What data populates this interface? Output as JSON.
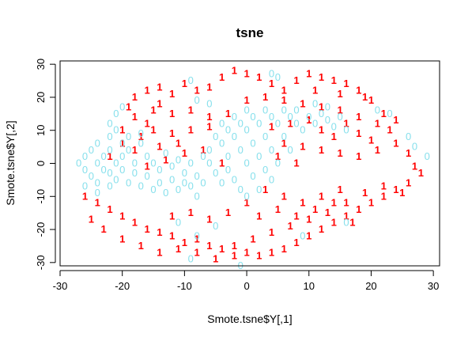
{
  "chart_data": {
    "type": "scatter",
    "title": "tsne",
    "xlabel": "Smote.tsne$Y[,1]",
    "ylabel": "Smote.tsne$Y[,2]",
    "xlim": [
      -30,
      31
    ],
    "ylim": [
      -31,
      31
    ],
    "x_ticks": [
      -30,
      -20,
      -10,
      0,
      10,
      20,
      30
    ],
    "y_ticks": [
      -30,
      -20,
      -10,
      0,
      10,
      20,
      30
    ],
    "x_tick_labels": [
      "-30",
      "-20",
      "-10",
      "0",
      "10",
      "20",
      "30"
    ],
    "y_tick_labels": [
      "-30",
      "-20",
      "-10",
      "0",
      "10",
      "20",
      "30"
    ],
    "grid": false,
    "legend": "none",
    "series": [
      {
        "glyph": "1",
        "color": "#ff0000",
        "points": [
          [
            -18,
            20
          ],
          [
            -16,
            22
          ],
          [
            -14,
            23
          ],
          [
            -12,
            21
          ],
          [
            -10,
            24
          ],
          [
            -8,
            22
          ],
          [
            -6,
            23
          ],
          [
            -4,
            26
          ],
          [
            -2,
            28
          ],
          [
            0,
            27
          ],
          [
            2,
            26
          ],
          [
            4,
            24
          ],
          [
            6,
            22
          ],
          [
            8,
            25
          ],
          [
            10,
            27
          ],
          [
            12,
            26
          ],
          [
            14,
            25
          ],
          [
            16,
            24
          ],
          [
            18,
            22
          ],
          [
            20,
            19
          ],
          [
            -18,
            14
          ],
          [
            -15,
            16
          ],
          [
            -12,
            15
          ],
          [
            -9,
            16
          ],
          [
            -6,
            14
          ],
          [
            -3,
            15
          ],
          [
            0,
            19
          ],
          [
            3,
            20
          ],
          [
            6,
            19
          ],
          [
            9,
            18
          ],
          [
            12,
            17
          ],
          [
            15,
            16
          ],
          [
            18,
            14
          ],
          [
            21,
            12
          ],
          [
            23,
            10
          ],
          [
            -17,
            8
          ],
          [
            -15,
            10
          ],
          [
            -12,
            9
          ],
          [
            -9,
            10
          ],
          [
            -6,
            11
          ],
          [
            -10,
            3
          ],
          [
            -13,
            1
          ],
          [
            -16,
            -1
          ],
          [
            -7,
            4
          ],
          [
            -4,
            0
          ],
          [
            6,
            6
          ],
          [
            9,
            5
          ],
          [
            12,
            4
          ],
          [
            15,
            3
          ],
          [
            18,
            2
          ],
          [
            21,
            4
          ],
          [
            24,
            6
          ],
          [
            26,
            3
          ],
          [
            27,
            -1
          ],
          [
            28,
            -3
          ],
          [
            26,
            -6
          ],
          [
            24,
            -8
          ],
          [
            22,
            -10
          ],
          [
            20,
            -12
          ],
          [
            18,
            -14
          ],
          [
            16,
            -16
          ],
          [
            14,
            -18
          ],
          [
            12,
            -20
          ],
          [
            10,
            -22
          ],
          [
            8,
            -24
          ],
          [
            6,
            -26
          ],
          [
            4,
            -27
          ],
          [
            2,
            -28
          ],
          [
            0,
            -27
          ],
          [
            -2,
            -28
          ],
          [
            -4,
            -26
          ],
          [
            -6,
            -25
          ],
          [
            -8,
            -23
          ],
          [
            -10,
            -24
          ],
          [
            -12,
            -22
          ],
          [
            -14,
            -21
          ],
          [
            -16,
            -20
          ],
          [
            -18,
            -18
          ],
          [
            -20,
            -16
          ],
          [
            -22,
            -14
          ],
          [
            -24,
            -12
          ],
          [
            -26,
            -10
          ],
          [
            -25,
            -17
          ],
          [
            -23,
            -20
          ],
          [
            -20,
            -23
          ],
          [
            -17,
            -25
          ],
          [
            -14,
            -27
          ],
          [
            -11,
            -26
          ],
          [
            -8,
            -27
          ],
          [
            -5,
            -29
          ],
          [
            -2,
            -25
          ],
          [
            1,
            -23
          ],
          [
            4,
            -21
          ],
          [
            7,
            -19
          ],
          [
            10,
            -17
          ],
          [
            13,
            -15
          ],
          [
            16,
            -12
          ],
          [
            19,
            -9
          ],
          [
            22,
            -7
          ],
          [
            25,
            -9
          ],
          [
            12,
            10
          ],
          [
            14,
            8
          ],
          [
            16,
            12
          ],
          [
            18,
            9
          ],
          [
            20,
            7
          ],
          [
            22,
            15
          ],
          [
            24,
            13
          ],
          [
            19,
            20
          ],
          [
            15,
            21
          ],
          [
            11,
            22
          ],
          [
            3,
            -8
          ],
          [
            6,
            -10
          ],
          [
            9,
            -12
          ],
          [
            12,
            -10
          ],
          [
            15,
            -8
          ],
          [
            0,
            -12
          ],
          [
            -3,
            -15
          ],
          [
            -6,
            -17
          ],
          [
            -9,
            -15
          ],
          [
            -12,
            -16
          ],
          [
            -20,
            6
          ],
          [
            -22,
            2
          ],
          [
            -18,
            4
          ],
          [
            -14,
            5
          ],
          [
            -11,
            6
          ],
          [
            4,
            11
          ],
          [
            7,
            12
          ],
          [
            10,
            13
          ],
          [
            5,
            2
          ],
          [
            8,
            0
          ],
          [
            -14,
            18
          ],
          [
            -16,
            12
          ],
          [
            -19,
            17
          ],
          [
            -20,
            10
          ],
          [
            2,
            -16
          ],
          [
            5,
            -14
          ],
          [
            8,
            -16
          ],
          [
            11,
            -14
          ],
          [
            14,
            -12
          ],
          [
            17,
            -18
          ]
        ]
      },
      {
        "glyph": "0",
        "color": "#88e0ec",
        "points": [
          [
            -27,
            0
          ],
          [
            -26,
            -2
          ],
          [
            -26,
            2
          ],
          [
            -25,
            4
          ],
          [
            -25,
            -4
          ],
          [
            -24,
            6
          ],
          [
            -24,
            -6
          ],
          [
            -24,
            0
          ],
          [
            -23,
            2
          ],
          [
            -23,
            -2
          ],
          [
            -22,
            8
          ],
          [
            -22,
            4
          ],
          [
            -22,
            -3
          ],
          [
            -22,
            -7
          ],
          [
            -21,
            0
          ],
          [
            -21,
            10
          ],
          [
            -21,
            -5
          ],
          [
            -20,
            6
          ],
          [
            -20,
            2
          ],
          [
            -20,
            -2
          ],
          [
            -19,
            8
          ],
          [
            -19,
            -6
          ],
          [
            -19,
            4
          ],
          [
            -18,
            0
          ],
          [
            -18,
            -3
          ],
          [
            -17,
            6
          ],
          [
            -17,
            9
          ],
          [
            -17,
            -7
          ],
          [
            -16,
            2
          ],
          [
            -16,
            -4
          ],
          [
            -15,
            0
          ],
          [
            -15,
            -8
          ],
          [
            -14,
            -6
          ],
          [
            -14,
            -2
          ],
          [
            -13,
            -9
          ],
          [
            -12,
            -5
          ],
          [
            -12,
            -1
          ],
          [
            -11,
            -8
          ],
          [
            -10,
            -6
          ],
          [
            -10,
            -3
          ],
          [
            -9,
            -7
          ],
          [
            -8,
            -4
          ],
          [
            -8,
            -10
          ],
          [
            -7,
            -6
          ],
          [
            -6,
            0
          ],
          [
            -6,
            4
          ],
          [
            -5,
            8
          ],
          [
            -5,
            -3
          ],
          [
            -4,
            12
          ],
          [
            -4,
            6
          ],
          [
            -4,
            -6
          ],
          [
            -3,
            10
          ],
          [
            -3,
            2
          ],
          [
            -3,
            -2
          ],
          [
            -2,
            14
          ],
          [
            -2,
            8
          ],
          [
            -2,
            -5
          ],
          [
            -1,
            12
          ],
          [
            -1,
            4
          ],
          [
            -1,
            -8
          ],
          [
            0,
            16
          ],
          [
            0,
            10
          ],
          [
            0,
            0
          ],
          [
            0,
            -10
          ],
          [
            1,
            14
          ],
          [
            1,
            6
          ],
          [
            1,
            -4
          ],
          [
            2,
            12
          ],
          [
            2,
            2
          ],
          [
            2,
            -8
          ],
          [
            3,
            16
          ],
          [
            3,
            8
          ],
          [
            3,
            -2
          ],
          [
            4,
            14
          ],
          [
            4,
            4
          ],
          [
            4,
            -5
          ],
          [
            5,
            12
          ],
          [
            5,
            0
          ],
          [
            6,
            16
          ],
          [
            6,
            8
          ],
          [
            7,
            14
          ],
          [
            7,
            4
          ],
          [
            8,
            12
          ],
          [
            8,
            16
          ],
          [
            9,
            10
          ],
          [
            10,
            14
          ],
          [
            11,
            12
          ],
          [
            12,
            15
          ],
          [
            13,
            13
          ],
          [
            14,
            11
          ],
          [
            15,
            14
          ],
          [
            16,
            10
          ],
          [
            -13,
            3
          ],
          [
            -11,
            1
          ],
          [
            -9,
            0
          ],
          [
            -7,
            2
          ],
          [
            5,
            26
          ],
          [
            4,
            27
          ],
          [
            -26,
            -7
          ],
          [
            -24,
            -9
          ],
          [
            -22,
            12
          ],
          [
            -21,
            15
          ],
          [
            -20,
            17
          ],
          [
            -8,
            19
          ],
          [
            -6,
            18
          ],
          [
            -9,
            25
          ],
          [
            21,
            16
          ],
          [
            23,
            15
          ],
          [
            26,
            8
          ],
          [
            27,
            5
          ],
          [
            29,
            2
          ],
          [
            -11,
            -18
          ],
          [
            -8,
            -22
          ],
          [
            -5,
            -19
          ],
          [
            -9,
            -29
          ],
          [
            -1,
            -31
          ],
          [
            9,
            -22
          ],
          [
            16,
            -18
          ],
          [
            11,
            18
          ],
          [
            13,
            17
          ]
        ]
      }
    ]
  }
}
